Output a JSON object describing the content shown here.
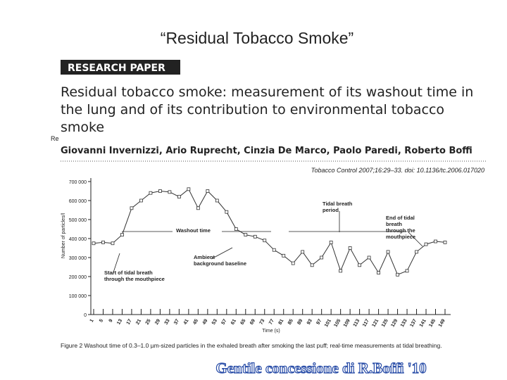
{
  "slide_title": "“Residual Tobacco Smoke”",
  "paper": {
    "section": "RESEARCH PAPER",
    "title_lines": [
      "Residual tobacco smoke: measurement of its washout time in",
      "the lung and of its contribution to environmental tobacco",
      "smoke"
    ],
    "fragment": "Re",
    "authors": "Giovanni Invernizzi, Ario Ruprecht, Cinzia De Marco, Paolo Paredi, Roberto Boffi",
    "citation": "Tobacco Control 2007;16:29–33. doi: 10.1136/tc.2006.017020",
    "caption": "Figure 2   Washout time of 0.3–1.0 µm-sized particles in the exhaled breath after smoking the last puff; real-time measurements at tidal breathing."
  },
  "credit": "Gentile concessione di R.Boffi '10",
  "chart_data": {
    "type": "line",
    "x_label": "Time (s)",
    "y_label": "Number of particles/l",
    "x": [
      1,
      5,
      9,
      13,
      17,
      21,
      25,
      29,
      33,
      37,
      41,
      45,
      49,
      53,
      57,
      61,
      65,
      69,
      73,
      77,
      81,
      85,
      89,
      93,
      97,
      101,
      105,
      109,
      113,
      117,
      121,
      125,
      129,
      133,
      137,
      141,
      145,
      149
    ],
    "series": [
      {
        "color": "#333333",
        "values": [
          375000,
          380000,
          375000,
          420000,
          560000,
          600000,
          640000,
          650000,
          645000,
          620000,
          660000,
          560000,
          650000,
          600000,
          540000,
          450000,
          420000,
          410000,
          390000,
          340000,
          310000,
          270000,
          330000,
          260000,
          300000,
          380000,
          230000,
          350000,
          260000,
          300000,
          220000,
          330000,
          210000,
          230000,
          330000,
          370000,
          385000,
          380000
        ]
      }
    ],
    "xlim": [
      1,
      149
    ],
    "xticks": [
      1,
      5,
      9,
      13,
      17,
      21,
      25,
      29,
      33,
      37,
      41,
      45,
      49,
      53,
      57,
      61,
      65,
      69,
      73,
      77,
      81,
      85,
      89,
      93,
      97,
      101,
      105,
      109,
      113,
      117,
      121,
      125,
      129,
      133,
      137,
      141,
      145,
      149
    ],
    "ylim": [
      0,
      700000
    ],
    "yticks": [
      0,
      {
        "value": 100000,
        "label": "100 000"
      },
      {
        "value": 200000,
        "label": "200 000"
      },
      {
        "value": 300000,
        "label": "300 000"
      },
      {
        "value": 400000,
        "label": "400 000"
      },
      {
        "value": 500000,
        "label": "500 000"
      },
      {
        "value": 600000,
        "label": "600 000"
      },
      {
        "value": 700000,
        "label": "700 000"
      }
    ],
    "annotations": [
      {
        "lines": [
          "Washout time"
        ]
      },
      {
        "lines": [
          "Ambient",
          "background baseline"
        ]
      },
      {
        "lines": [
          "Start of tidal breath",
          "through the mouthpiece"
        ]
      },
      {
        "lines": [
          "Tidal breath",
          "period"
        ]
      },
      {
        "lines": [
          "End of tidal",
          "breath",
          "through the",
          "mouthpiece"
        ]
      }
    ]
  }
}
